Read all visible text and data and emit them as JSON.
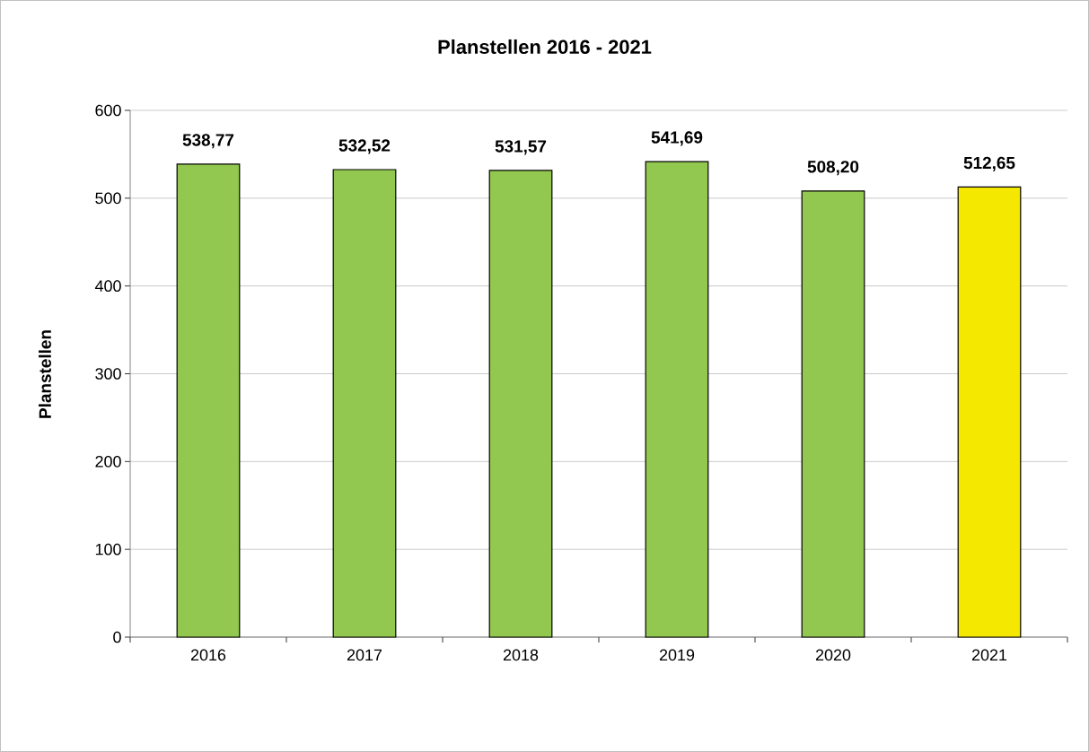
{
  "chart_data": {
    "type": "bar",
    "title": "Planstellen 2016 - 2021",
    "ylabel": "Planstellen",
    "categories": [
      "2016",
      "2017",
      "2018",
      "2019",
      "2020",
      "2021"
    ],
    "values": [
      538.77,
      532.52,
      531.57,
      541.69,
      508.2,
      512.65
    ],
    "colors": [
      "#92c84f",
      "#92c84f",
      "#92c84f",
      "#92c84f",
      "#92c84f",
      "#f5e800"
    ],
    "value_labels": [
      "538,77",
      "532,52",
      "531,57",
      "541,69",
      "508,20",
      "512,65"
    ],
    "ylim": [
      0,
      600
    ],
    "yticks": [
      0,
      100,
      200,
      300,
      400,
      500,
      600
    ],
    "grid": "y"
  }
}
